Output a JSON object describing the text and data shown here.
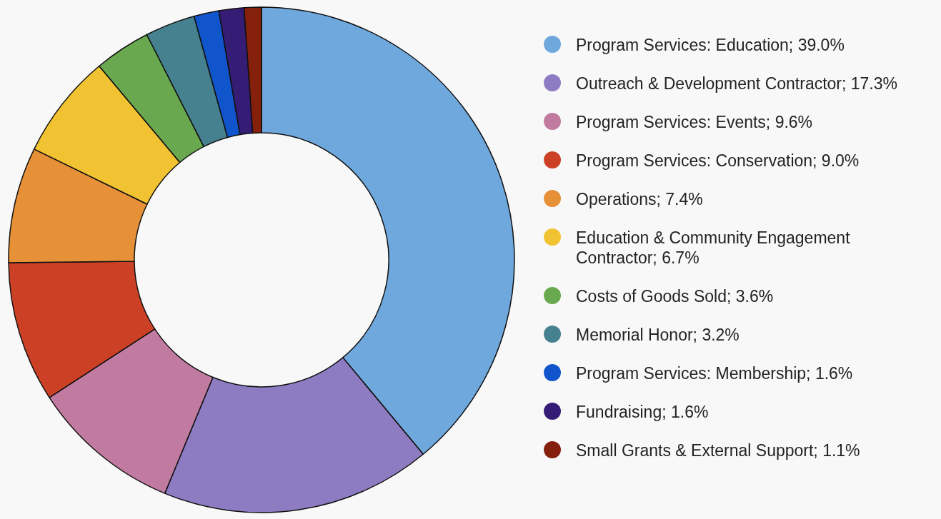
{
  "chart_data": {
    "type": "donut",
    "legend": "right",
    "categories": [
      "Program Services: Education; 39.0%",
      "Outreach & Development Contractor; 17.3%",
      "Program Services: Events; 9.6%",
      "Program Services: Conservation; 9.0%",
      "Operations; 7.4%",
      "Education & Community Engagement Contractor; 6.7%",
      "Costs of Goods Sold; 3.6%",
      "Memorial Honor; 3.2%",
      "Program Services: Membership; 1.6%",
      "Fundraising; 1.6%",
      "Small Grants & External Support; 1.1%"
    ],
    "values": [
      39.0,
      17.3,
      9.6,
      9.0,
      7.4,
      6.7,
      3.6,
      3.2,
      1.6,
      1.6,
      1.1
    ],
    "colors": [
      "#6fa8dc",
      "#8e7cc3",
      "#c27ba0",
      "#cc4125",
      "#e69138",
      "#f1c232",
      "#6aa84f",
      "#45818e",
      "#1155cc",
      "#351c75",
      "#85200c"
    ]
  }
}
